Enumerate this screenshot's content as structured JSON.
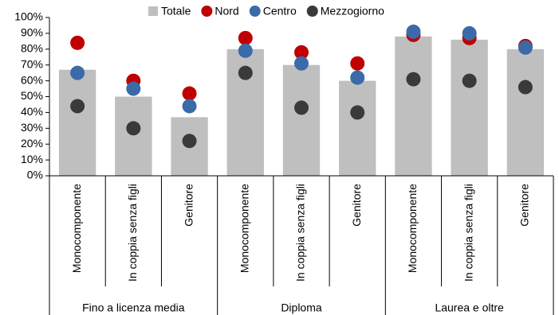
{
  "chart_data": {
    "type": "bar_dot",
    "categories": [
      "Monocomponente",
      "In coppia senza figli",
      "Genitore",
      "Monocomponente",
      "In coppia senza figli",
      "Genitore",
      "Monocomponente",
      "In coppia senza figli",
      "Genitore"
    ],
    "groups": [
      "Fino a licenza media",
      "Diploma",
      "Laurea e oltre"
    ],
    "series": [
      {
        "name": "Totale",
        "color": "#bfbfbf",
        "values": [
          67,
          50,
          37,
          80,
          70,
          60,
          88,
          86,
          80
        ]
      },
      {
        "name": "Nord",
        "color": "#c00000",
        "values": [
          84,
          60,
          52,
          87,
          78,
          71,
          89,
          87,
          82
        ]
      },
      {
        "name": "Centro",
        "color": "#3a6aa8",
        "values": [
          65,
          55,
          44,
          79,
          71,
          62,
          91,
          90,
          81
        ]
      },
      {
        "name": "Mezzogiorno",
        "color": "#3a3a3a",
        "values": [
          44,
          30,
          22,
          65,
          43,
          40,
          61,
          60,
          56
        ]
      }
    ],
    "ylim": [
      0,
      100
    ],
    "yticks": [
      {
        "value": 0,
        "label": "0%"
      },
      {
        "value": 10,
        "label": "10%"
      },
      {
        "value": 20,
        "label": "20%"
      },
      {
        "value": 30,
        "label": "30%"
      },
      {
        "value": 40,
        "label": "40%"
      },
      {
        "value": 50,
        "label": "50%"
      },
      {
        "value": 60,
        "label": "60%"
      },
      {
        "value": 70,
        "label": "70%"
      },
      {
        "value": 80,
        "label": "80%"
      },
      {
        "value": 90,
        "label": "90%"
      },
      {
        "value": 100,
        "label": "100%"
      }
    ]
  }
}
